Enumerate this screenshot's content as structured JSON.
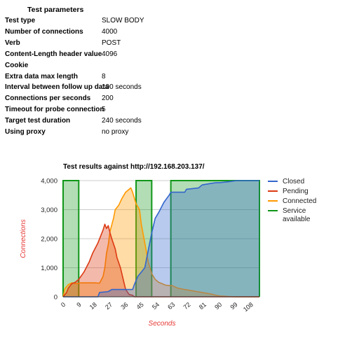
{
  "params": {
    "title": "Test parameters",
    "rows": [
      {
        "label": "Test type",
        "value": "SLOW BODY"
      },
      {
        "label": "Number of connections",
        "value": "4000"
      },
      {
        "label": "Verb",
        "value": "POST"
      },
      {
        "label": "Content-Length header value",
        "value": "4096"
      },
      {
        "label": "Cookie",
        "value": ""
      },
      {
        "label": "Extra data max length",
        "value": "8"
      },
      {
        "label": "Interval between follow up data",
        "value": "100 seconds"
      },
      {
        "label": "Connections per seconds",
        "value": "200"
      },
      {
        "label": "Timeout for probe connection",
        "value": "5"
      },
      {
        "label": "Target test duration",
        "value": "240 seconds"
      },
      {
        "label": "Using proxy",
        "value": "no proxy"
      }
    ]
  },
  "chart_data": {
    "type": "area",
    "title": "Test results against http://192.168.203.137/",
    "xlabel": "Seconds",
    "ylabel": "Connections",
    "xlim": [
      0,
      113
    ],
    "ylim": [
      0,
      4000
    ],
    "x_ticks": [
      "0",
      "9",
      "18",
      "27",
      "36",
      "45",
      "54",
      "63",
      "72",
      "81",
      "90",
      "99",
      "108"
    ],
    "y_ticks": [
      "0",
      "1,000",
      "2,000",
      "3,000",
      "4,000"
    ],
    "grid": true,
    "legend_position": "right",
    "series": [
      {
        "name": "Closed",
        "color": "#3366cc",
        "points": [
          [
            0,
            0
          ],
          [
            9,
            0
          ],
          [
            20,
            0
          ],
          [
            21,
            150
          ],
          [
            26,
            180
          ],
          [
            28,
            250
          ],
          [
            38,
            250
          ],
          [
            40,
            250
          ],
          [
            41,
            420
          ],
          [
            43,
            700
          ],
          [
            45,
            850
          ],
          [
            47,
            1000
          ],
          [
            49,
            1600
          ],
          [
            51,
            2200
          ],
          [
            53,
            2700
          ],
          [
            55,
            2900
          ],
          [
            58,
            3250
          ],
          [
            61,
            3500
          ],
          [
            62,
            3600
          ],
          [
            70,
            3600
          ],
          [
            71,
            3700
          ],
          [
            78,
            3750
          ],
          [
            80,
            3850
          ],
          [
            85,
            3900
          ],
          [
            88,
            3930
          ],
          [
            90,
            3930
          ],
          [
            95,
            3960
          ],
          [
            100,
            4000
          ],
          [
            113,
            4000
          ]
        ]
      },
      {
        "name": "Pending",
        "color": "#dc3912",
        "points": [
          [
            0,
            0
          ],
          [
            2,
            150
          ],
          [
            3,
            300
          ],
          [
            5,
            450
          ],
          [
            7,
            500
          ],
          [
            9,
            600
          ],
          [
            12,
            850
          ],
          [
            15,
            1200
          ],
          [
            17,
            1500
          ],
          [
            20,
            1850
          ],
          [
            22,
            2150
          ],
          [
            23,
            2300
          ],
          [
            24,
            2500
          ],
          [
            25,
            2350
          ],
          [
            26,
            2450
          ],
          [
            27,
            2200
          ],
          [
            28,
            2000
          ],
          [
            30,
            1650
          ],
          [
            31,
            1350
          ],
          [
            33,
            1000
          ],
          [
            35,
            500
          ],
          [
            36,
            250
          ],
          [
            38,
            80
          ],
          [
            40,
            50
          ],
          [
            41,
            0
          ],
          [
            113,
            0
          ]
        ]
      },
      {
        "name": "Connected",
        "color": "#ff9900",
        "points": [
          [
            0,
            0
          ],
          [
            1,
            280
          ],
          [
            2,
            350
          ],
          [
            3,
            420
          ],
          [
            5,
            480
          ],
          [
            8,
            450
          ],
          [
            10,
            480
          ],
          [
            18,
            480
          ],
          [
            21,
            470
          ],
          [
            23,
            700
          ],
          [
            24,
            1000
          ],
          [
            25,
            1500
          ],
          [
            26,
            1800
          ],
          [
            27,
            2250
          ],
          [
            29,
            2700
          ],
          [
            30,
            3000
          ],
          [
            32,
            3150
          ],
          [
            34,
            3400
          ],
          [
            36,
            3600
          ],
          [
            38,
            3700
          ],
          [
            39,
            3750
          ],
          [
            40,
            3600
          ],
          [
            42,
            3200
          ],
          [
            44,
            3000
          ],
          [
            45,
            2500
          ],
          [
            47,
            1850
          ],
          [
            49,
            1200
          ],
          [
            51,
            800
          ],
          [
            53,
            600
          ],
          [
            55,
            500
          ],
          [
            57,
            450
          ],
          [
            59,
            400
          ],
          [
            63,
            380
          ],
          [
            66,
            300
          ],
          [
            70,
            250
          ],
          [
            75,
            200
          ],
          [
            80,
            150
          ],
          [
            85,
            100
          ],
          [
            88,
            50
          ],
          [
            90,
            30
          ],
          [
            95,
            10
          ],
          [
            100,
            0
          ],
          [
            113,
            0
          ]
        ]
      },
      {
        "name": "Service available",
        "color": "#109618",
        "segments": [
          [
            0,
            9
          ],
          [
            42,
            51
          ],
          [
            62,
            113
          ]
        ]
      }
    ]
  }
}
